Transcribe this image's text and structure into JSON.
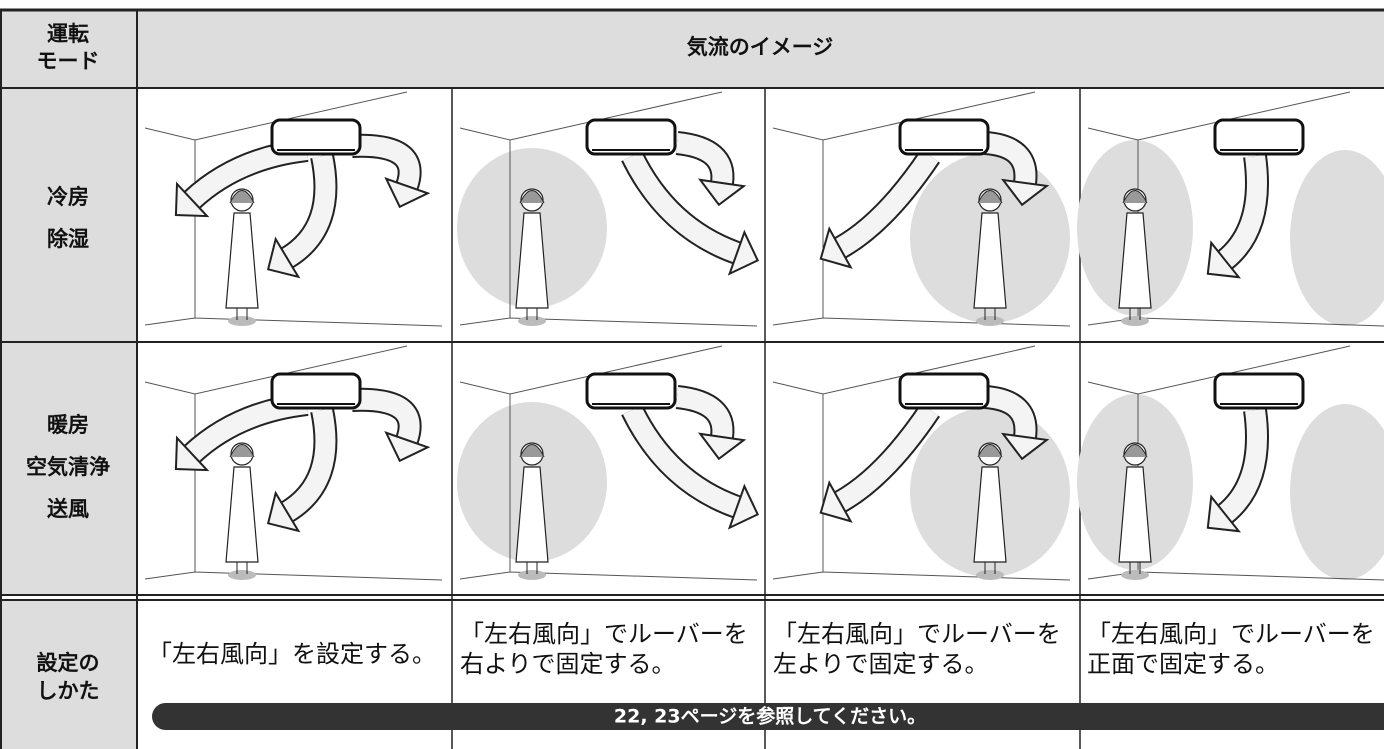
{
  "header": {
    "mode": [
      "運転",
      "モード"
    ],
    "image": "気流のイメージ"
  },
  "rows": [
    {
      "mode": [
        "冷房",
        "除湿"
      ]
    },
    {
      "mode": [
        "暖房",
        "空気清浄",
        "送風"
      ]
    }
  ],
  "settings": {
    "label": [
      "設定の",
      "しかた"
    ],
    "cells": [
      [
        "「左右風向」を設定する。"
      ],
      [
        "「左右風向」でルーバーを",
        "右よりで固定する。"
      ],
      [
        "「左右風向」でルーバーを",
        "左よりで固定する。"
      ],
      [
        "「左右風向」でルーバーを",
        "正面で固定する。"
      ]
    ],
    "note": "22, 23ページを参照してください。"
  }
}
